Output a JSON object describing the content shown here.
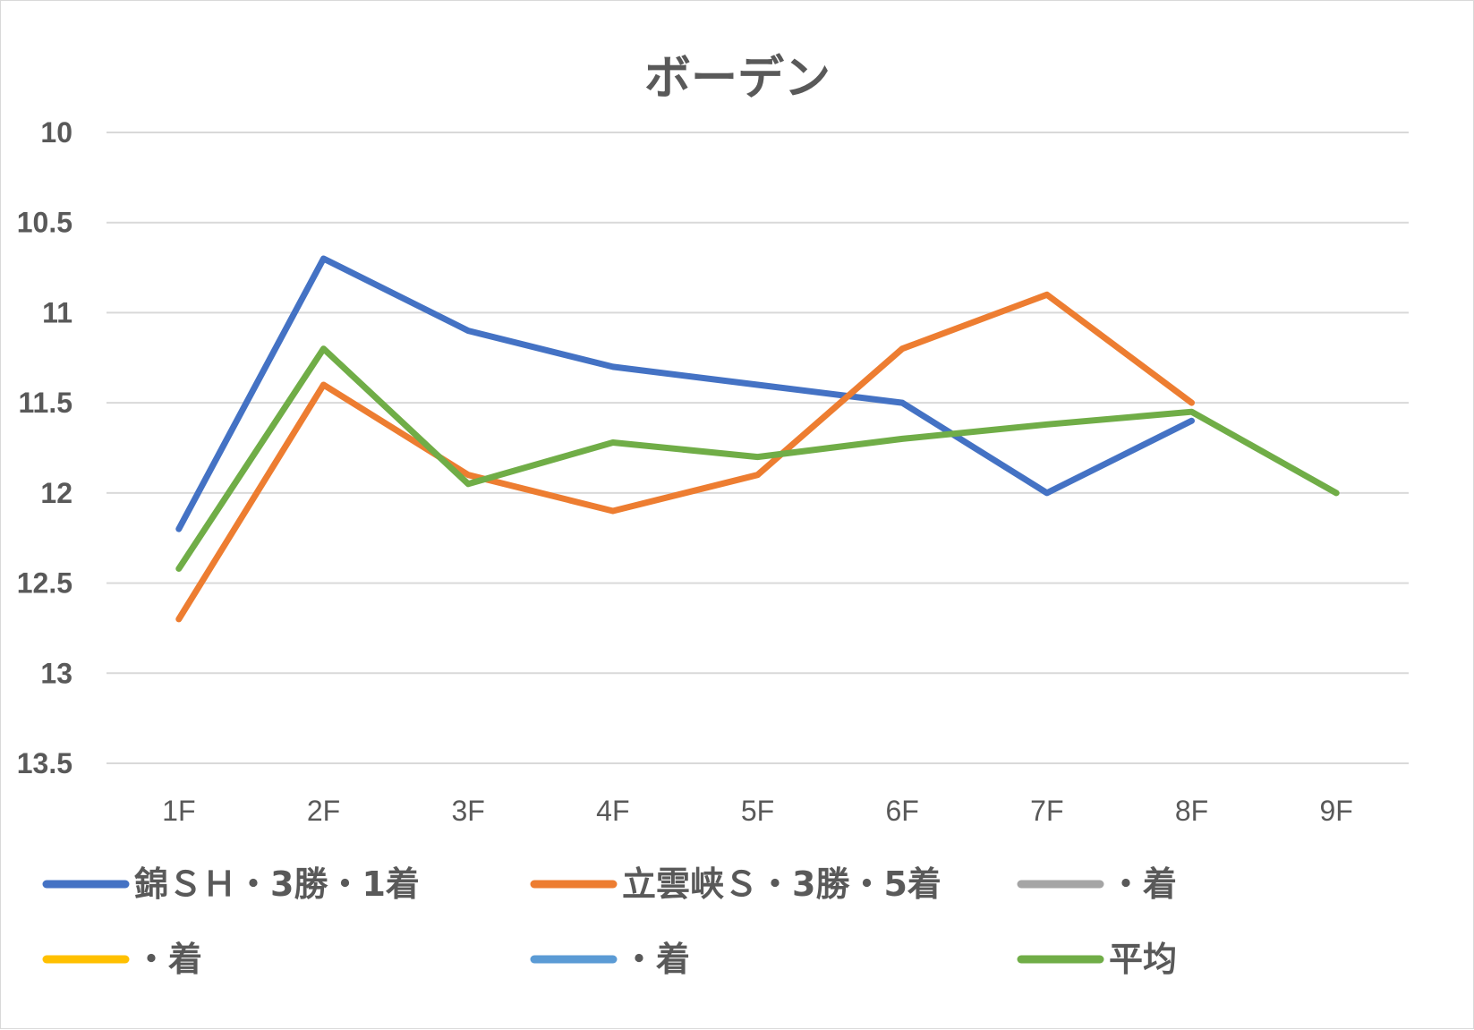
{
  "chart_data": {
    "type": "line",
    "title": "ボーデン",
    "xlabel": "",
    "ylabel": "",
    "categories": [
      "1F",
      "2F",
      "3F",
      "4F",
      "5F",
      "6F",
      "7F",
      "8F",
      "9F"
    ],
    "y_ticks": [
      "10",
      "10.5",
      "11",
      "11.5",
      "12",
      "12.5",
      "13",
      "13.5"
    ],
    "ylim": [
      10,
      13.5
    ],
    "y_reversed": true,
    "grid": true,
    "legend_position": "bottom",
    "series": [
      {
        "name": "錦ＳＨ・3勝・1着",
        "color": "#4472C4",
        "values": [
          12.2,
          10.7,
          11.1,
          11.3,
          11.4,
          11.5,
          12.0,
          11.6,
          null
        ]
      },
      {
        "name": "立雲峡Ｓ・3勝・5着",
        "color": "#ED7D31",
        "values": [
          12.7,
          11.4,
          11.9,
          12.1,
          11.9,
          11.2,
          10.9,
          11.5,
          null
        ]
      },
      {
        "name": "・着",
        "color": "#A5A5A5",
        "values": [
          null,
          null,
          null,
          null,
          null,
          null,
          null,
          null,
          null
        ]
      },
      {
        "name": "・着",
        "color": "#FFC000",
        "values": [
          null,
          null,
          null,
          null,
          null,
          null,
          null,
          null,
          null
        ]
      },
      {
        "name": "・着",
        "color": "#5B9BD5",
        "values": [
          null,
          null,
          null,
          null,
          null,
          null,
          null,
          null,
          null
        ]
      },
      {
        "name": "平均",
        "color": "#70AD47",
        "values": [
          12.42,
          11.2,
          11.95,
          11.72,
          11.8,
          11.7,
          11.62,
          11.55,
          12.0
        ]
      }
    ]
  }
}
